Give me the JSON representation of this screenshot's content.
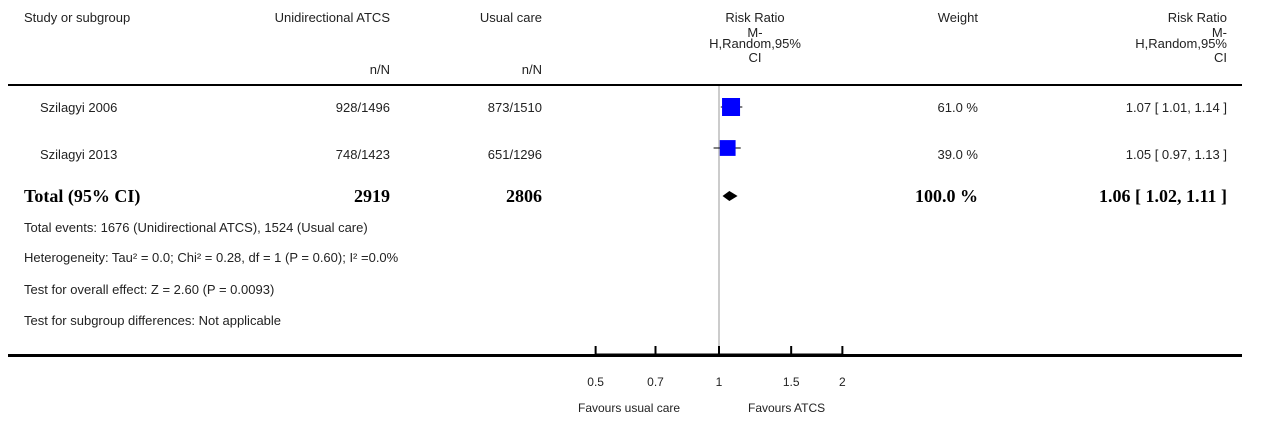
{
  "header": {
    "study": "Study or subgroup",
    "exp": "Unidirectional ATCS",
    "exp_sub": "n/N",
    "ctrl": "Usual care",
    "ctrl_sub": "n/N",
    "plot_title": "Risk Ratio",
    "plot_sub1": "M-",
    "plot_sub2": "H,Random,95%",
    "plot_sub3": "CI",
    "weight": "Weight",
    "rr_title": "Risk Ratio",
    "rr_sub1": "M-",
    "rr_sub2": "H,Random,95%",
    "rr_sub3": "CI"
  },
  "rows": [
    {
      "study": "Szilagyi 2006",
      "exp": "928/1496",
      "ctrl": "873/1510",
      "weight": "61.0 %",
      "rr": "1.07 [ 1.01, 1.14 ]"
    },
    {
      "study": "Szilagyi 2013",
      "exp": "748/1423",
      "ctrl": "651/1296",
      "weight": "39.0 %",
      "rr": "1.05 [ 0.97, 1.13 ]"
    }
  ],
  "total": {
    "label": "Total (95% CI)",
    "exp": "2919",
    "ctrl": "2806",
    "weight": "100.0 %",
    "rr": "1.06 [ 1.02, 1.11 ]"
  },
  "footer": {
    "events": "Total events: 1676 (Unidirectional ATCS), 1524 (Usual care)",
    "heterogeneity": "Heterogeneity: Tau² = 0.0; Chi² = 0.28, df = 1 (P = 0.60); I² =0.0%",
    "overall": "Test for overall effect: Z = 2.60 (P = 0.0093)",
    "subgroup": "Test for subgroup differences: Not applicable"
  },
  "axis": {
    "ticks": [
      "0.5",
      "0.7",
      "1",
      "1.5",
      "2"
    ],
    "favours_left": "Favours usual care",
    "favours_right": "Favours ATCS"
  },
  "colors": {
    "square": "#0000ff",
    "diamond": "#000000",
    "line": "#000000"
  },
  "chart_data": {
    "type": "forest",
    "scale": "log",
    "xlim": [
      0.5,
      2
    ],
    "ticks": [
      0.5,
      0.7,
      1,
      1.5,
      2
    ],
    "null_value": 1,
    "studies": [
      {
        "name": "Szilagyi 2006",
        "rr": 1.07,
        "lo": 1.01,
        "hi": 1.14,
        "weight": 61.0
      },
      {
        "name": "Szilagyi 2013",
        "rr": 1.05,
        "lo": 0.97,
        "hi": 1.13,
        "weight": 39.0
      }
    ],
    "pooled": {
      "rr": 1.06,
      "lo": 1.02,
      "hi": 1.11
    }
  }
}
